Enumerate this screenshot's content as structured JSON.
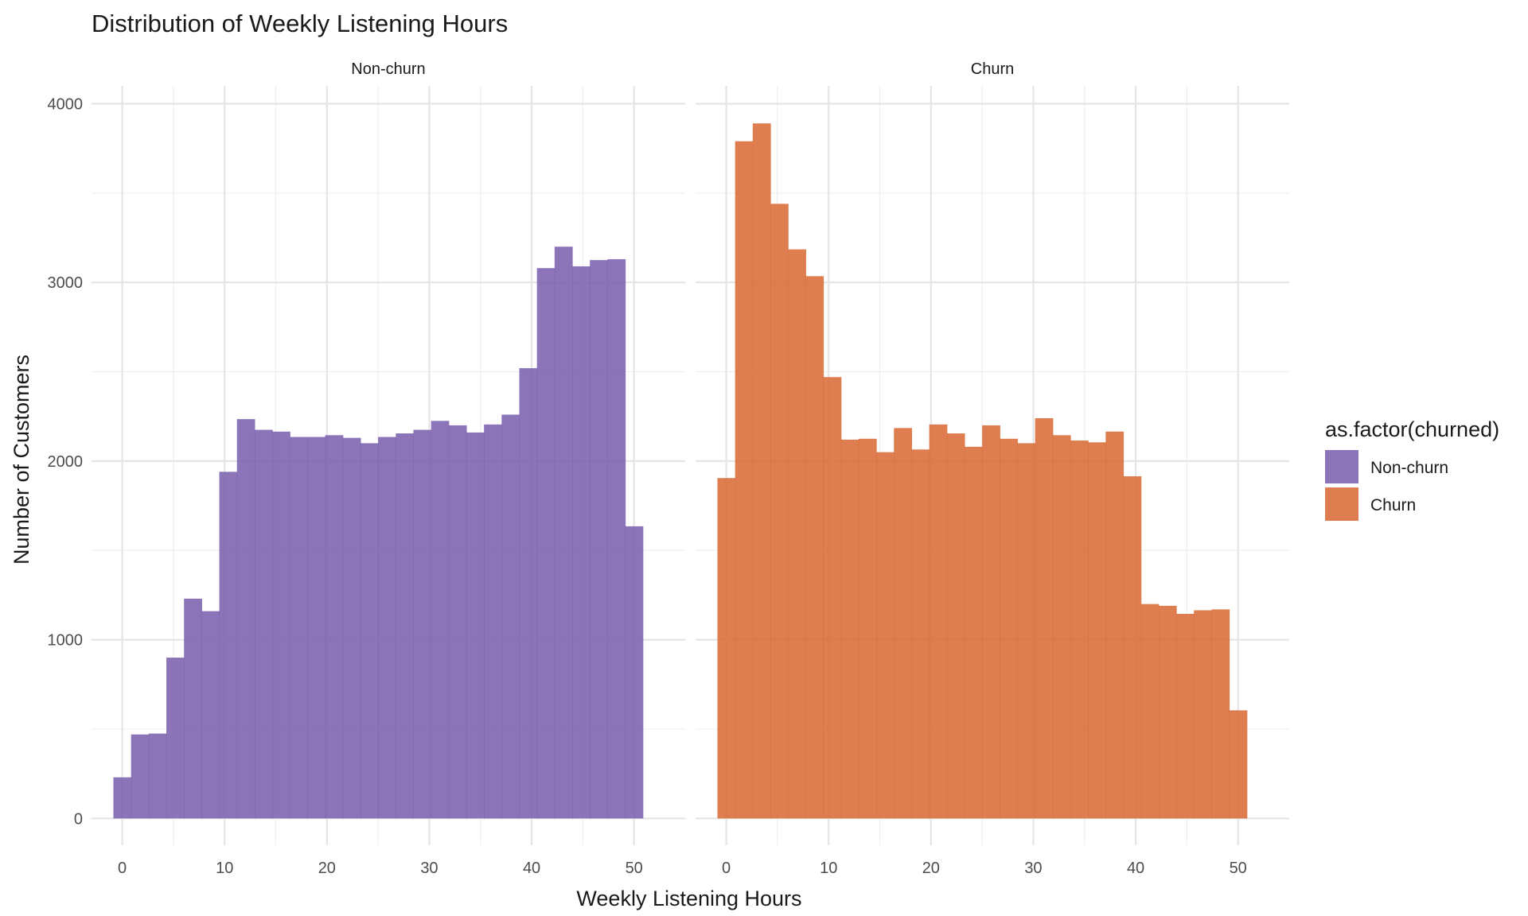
{
  "chart_data": {
    "type": "histogram",
    "title": "Distribution of Weekly Listening Hours",
    "xlabel": "Weekly Listening Hours",
    "ylabel": "Number of Customers",
    "xlim": [
      -3,
      55
    ],
    "ylim": [
      -150,
      4100
    ],
    "x_ticks": [
      0,
      10,
      20,
      30,
      40,
      50
    ],
    "y_ticks": [
      0,
      1000,
      2000,
      3000,
      4000
    ],
    "bin_width": 1.724,
    "bin_start": -0.862,
    "legend": {
      "title": "as.factor(churned)",
      "position": "right",
      "entries": [
        {
          "label": "Non-churn",
          "color": "#7B62AE"
        },
        {
          "label": "Churn",
          "color": "#D96C38"
        }
      ]
    },
    "panels": [
      {
        "name": "Non-churn",
        "color": "#7B62AE",
        "values": [
          230,
          470,
          475,
          900,
          1230,
          1160,
          1940,
          2235,
          2175,
          2165,
          2135,
          2135,
          2145,
          2130,
          2100,
          2135,
          2155,
          2175,
          2225,
          2200,
          2160,
          2205,
          2260,
          2520,
          3080,
          3200,
          3090,
          3125,
          3130,
          1635
        ]
      },
      {
        "name": "Churn",
        "color": "#D96C38",
        "values": [
          1905,
          3790,
          3890,
          3440,
          3185,
          3035,
          2470,
          2120,
          2125,
          2050,
          2185,
          2065,
          2205,
          2155,
          2080,
          2200,
          2125,
          2100,
          2240,
          2145,
          2115,
          2105,
          2165,
          1915,
          1200,
          1190,
          1145,
          1165,
          1170,
          605
        ]
      }
    ]
  }
}
